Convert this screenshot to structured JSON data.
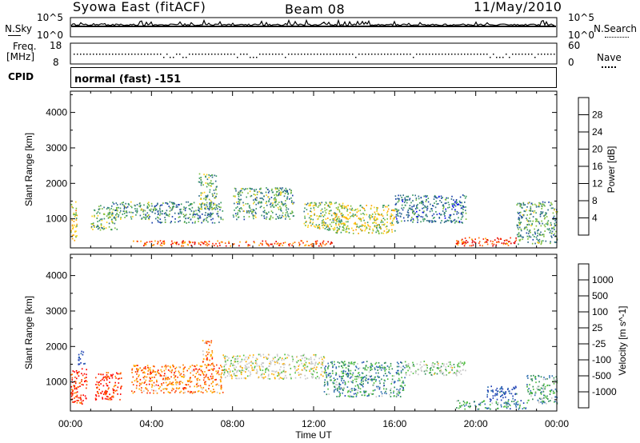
{
  "header": {
    "station": "Syowa East (fitACF)",
    "beam": "Beam 08",
    "date": "11/May/2010"
  },
  "top_panels": {
    "nsky_label": "N.Sky",
    "nsearch_label": "N.Search",
    "freq_label_line1": "Freq.",
    "freq_label_line2": "[MHz]",
    "nave_label": "Nave",
    "cpid_label": "CPID",
    "noise_ticks": [
      "10^5",
      "10^0"
    ],
    "noise_ticks_right": [
      "10^5",
      "10^0"
    ],
    "freq_ticks": [
      "18",
      "8"
    ],
    "nave_ticks": [
      "60",
      "0"
    ],
    "cpid_text": "normal (fast) -151"
  },
  "chart_data": [
    {
      "type": "heatmap",
      "name": "power",
      "ylabel": "Slant Range [km]",
      "ylim": [
        180,
        4600
      ],
      "yticks": [
        1000,
        2000,
        3000,
        4000
      ],
      "xlim": [
        0,
        24
      ],
      "xticks": [
        "00:00",
        "04:00",
        "08:00",
        "12:00",
        "16:00",
        "20:00",
        "00:00"
      ],
      "colorbar": {
        "label": "Power [dB]",
        "ticks": [
          "4",
          "8",
          "12",
          "16",
          "20",
          "24",
          "28"
        ],
        "colors": [
          "#0000ff",
          "#1a3faa",
          "#2f6e8a",
          "#3c9a64",
          "#7fbf3f",
          "#ffd21a",
          "#ffa500",
          "#ff6a00",
          "#ff2a00",
          "#e00000"
        ]
      },
      "regions": [
        {
          "t": [
            0.0,
            0.3
          ],
          "r": [
            300,
            1500
          ],
          "level": 0.55
        },
        {
          "t": [
            1.0,
            2.3
          ],
          "r": [
            700,
            1400
          ],
          "level": 0.4
        },
        {
          "t": [
            2.0,
            4.0
          ],
          "r": [
            1000,
            1500
          ],
          "level": 0.35
        },
        {
          "t": [
            4.0,
            7.5
          ],
          "r": [
            900,
            1500
          ],
          "level": 0.3
        },
        {
          "t": [
            6.3,
            7.2
          ],
          "r": [
            1300,
            2300
          ],
          "level": 0.4
        },
        {
          "t": [
            8.0,
            11.0
          ],
          "r": [
            1000,
            1900
          ],
          "level": 0.35
        },
        {
          "t": [
            11.5,
            13.5
          ],
          "r": [
            700,
            1500
          ],
          "level": 0.45
        },
        {
          "t": [
            13.0,
            16.0
          ],
          "r": [
            600,
            1400
          ],
          "level": 0.5
        },
        {
          "t": [
            16.0,
            19.5
          ],
          "r": [
            900,
            1700
          ],
          "level": 0.25
        },
        {
          "t": [
            19.0,
            22.0
          ],
          "r": [
            250,
            500
          ],
          "level": 0.85
        },
        {
          "t": [
            22.0,
            24.0
          ],
          "r": [
            300,
            1500
          ],
          "level": 0.35
        },
        {
          "t": [
            3.0,
            13.0
          ],
          "r": [
            250,
            400
          ],
          "level": 0.8
        }
      ]
    },
    {
      "type": "heatmap",
      "name": "velocity",
      "ylabel": "Slant Range [km]",
      "xlabel": "Time UT",
      "ylim": [
        180,
        4600
      ],
      "yticks": [
        1000,
        2000,
        3000,
        4000
      ],
      "xlim": [
        0,
        24
      ],
      "xticks": [
        "00:00",
        "04:00",
        "08:00",
        "12:00",
        "16:00",
        "20:00",
        "00:00"
      ],
      "colorbar": {
        "label": "Velocity [m s^-1]",
        "ticks": [
          "1000",
          "500",
          "100",
          "25",
          "-25",
          "-100",
          "-500",
          "-1000"
        ],
        "colors": [
          "#1f3fb5",
          "#2f6fb0",
          "#2e8b57",
          "#4fbf3f",
          "#c8c8c8",
          "#c8c8c8",
          "#ffb000",
          "#ff8000",
          "#ff4000",
          "#ff0000"
        ]
      },
      "regions": [
        {
          "t": [
            0.0,
            0.8
          ],
          "r": [
            400,
            1400
          ],
          "level": 0.9
        },
        {
          "t": [
            0.3,
            0.7
          ],
          "r": [
            1500,
            1900
          ],
          "level": 0.05
        },
        {
          "t": [
            1.2,
            2.5
          ],
          "r": [
            500,
            1300
          ],
          "level": 0.9
        },
        {
          "t": [
            3.0,
            7.5
          ],
          "r": [
            700,
            1500
          ],
          "level": 0.75
        },
        {
          "t": [
            6.5,
            7.0
          ],
          "r": [
            1500,
            2200
          ],
          "level": 0.75
        },
        {
          "t": [
            7.5,
            12.5
          ],
          "r": [
            1100,
            1800
          ],
          "level": 0.5
        },
        {
          "t": [
            12.5,
            16.5
          ],
          "r": [
            600,
            1600
          ],
          "level": 0.25
        },
        {
          "t": [
            16.5,
            19.5
          ],
          "r": [
            1200,
            1600
          ],
          "level": 0.45
        },
        {
          "t": [
            19.0,
            22.5
          ],
          "r": [
            250,
            500
          ],
          "level": 0.25
        },
        {
          "t": [
            20.5,
            22.0
          ],
          "r": [
            500,
            900
          ],
          "level": 0.05
        },
        {
          "t": [
            22.5,
            24.0
          ],
          "r": [
            400,
            1200
          ],
          "level": 0.3
        }
      ]
    }
  ]
}
